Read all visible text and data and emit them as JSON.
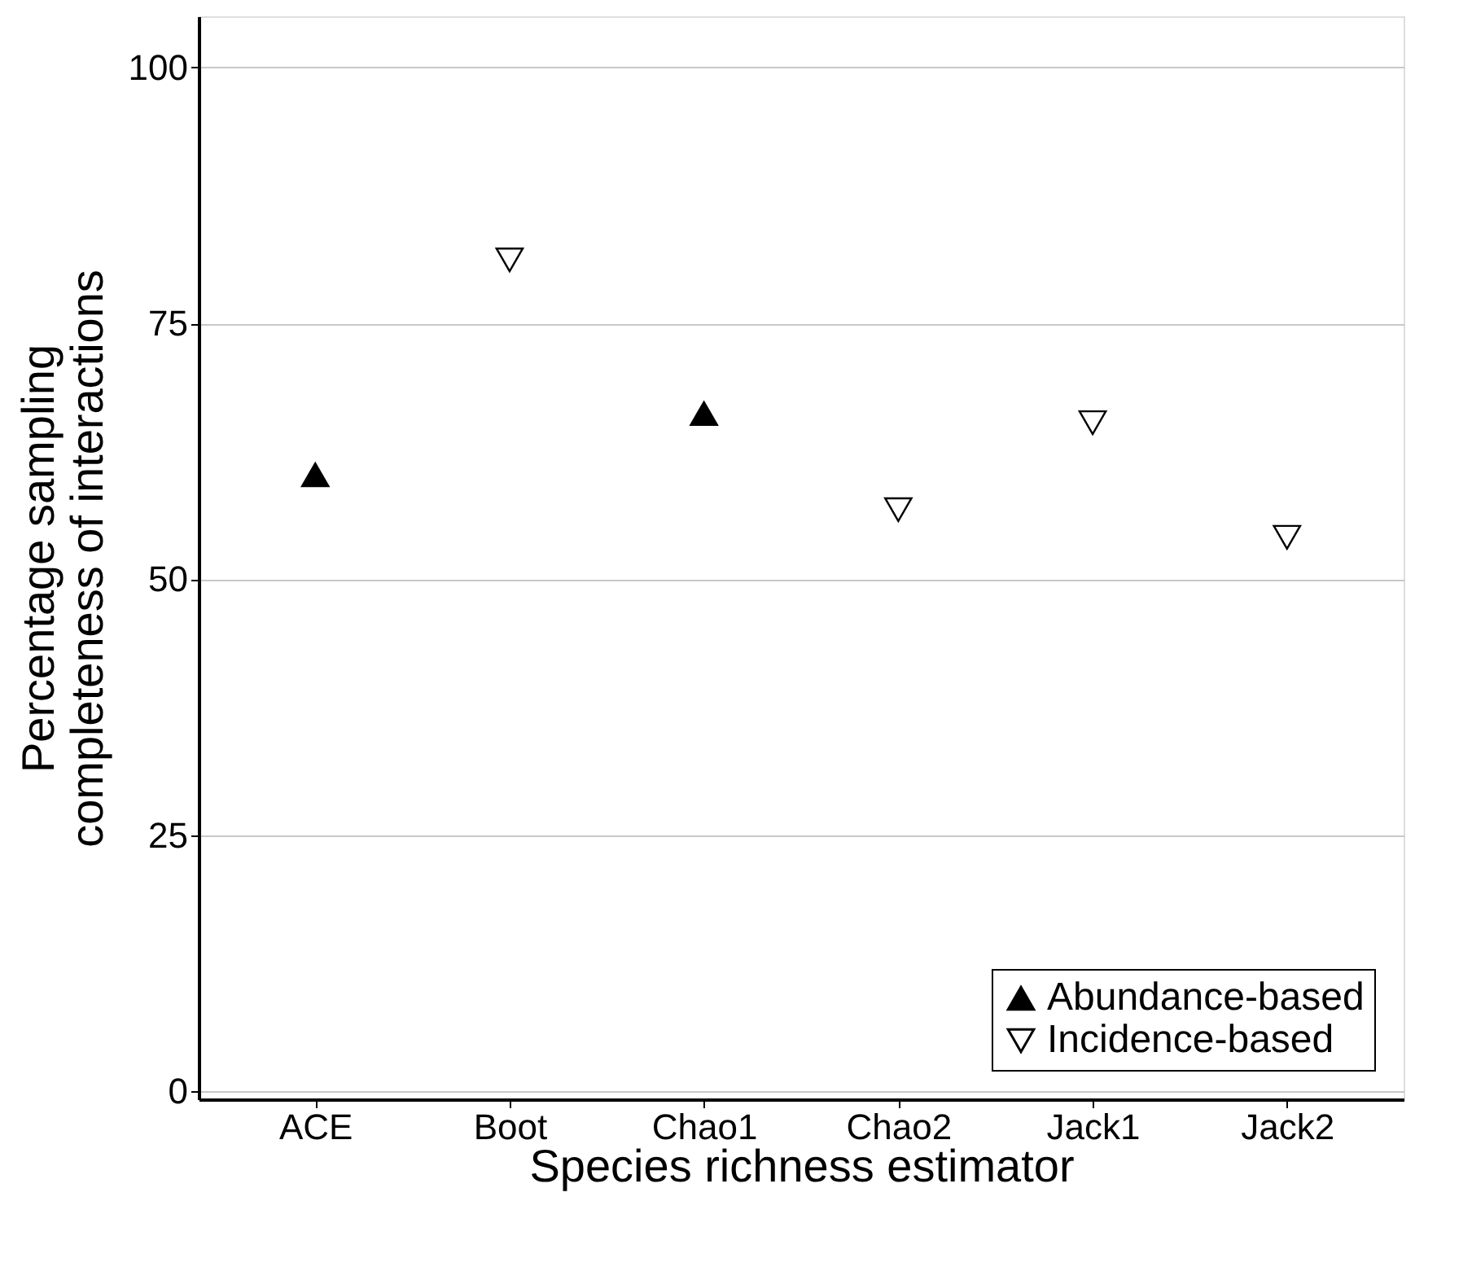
{
  "chart_data": {
    "type": "scatter",
    "xlabel": "Species richness estimator",
    "ylabel": "Percentage sampling\ncompleteness of interactions",
    "categories": [
      "ACE",
      "Boot",
      "Chao1",
      "Chao2",
      "Jack1",
      "Jack2"
    ],
    "series": [
      {
        "name": "Abundance-based",
        "color": "#000000",
        "marker": "triangle",
        "values": [
          60.2,
          null,
          66.2,
          null,
          null,
          null
        ]
      },
      {
        "name": "Incidence-based",
        "color": "#000000",
        "marker": "triangle-down",
        "values": [
          null,
          81.2,
          null,
          56.8,
          65.3,
          54.1
        ]
      }
    ],
    "ylim": [
      -0.8,
      105
    ],
    "yticks": [
      0,
      25,
      50,
      75,
      100
    ],
    "grid": "y",
    "legend": "bottom right"
  }
}
